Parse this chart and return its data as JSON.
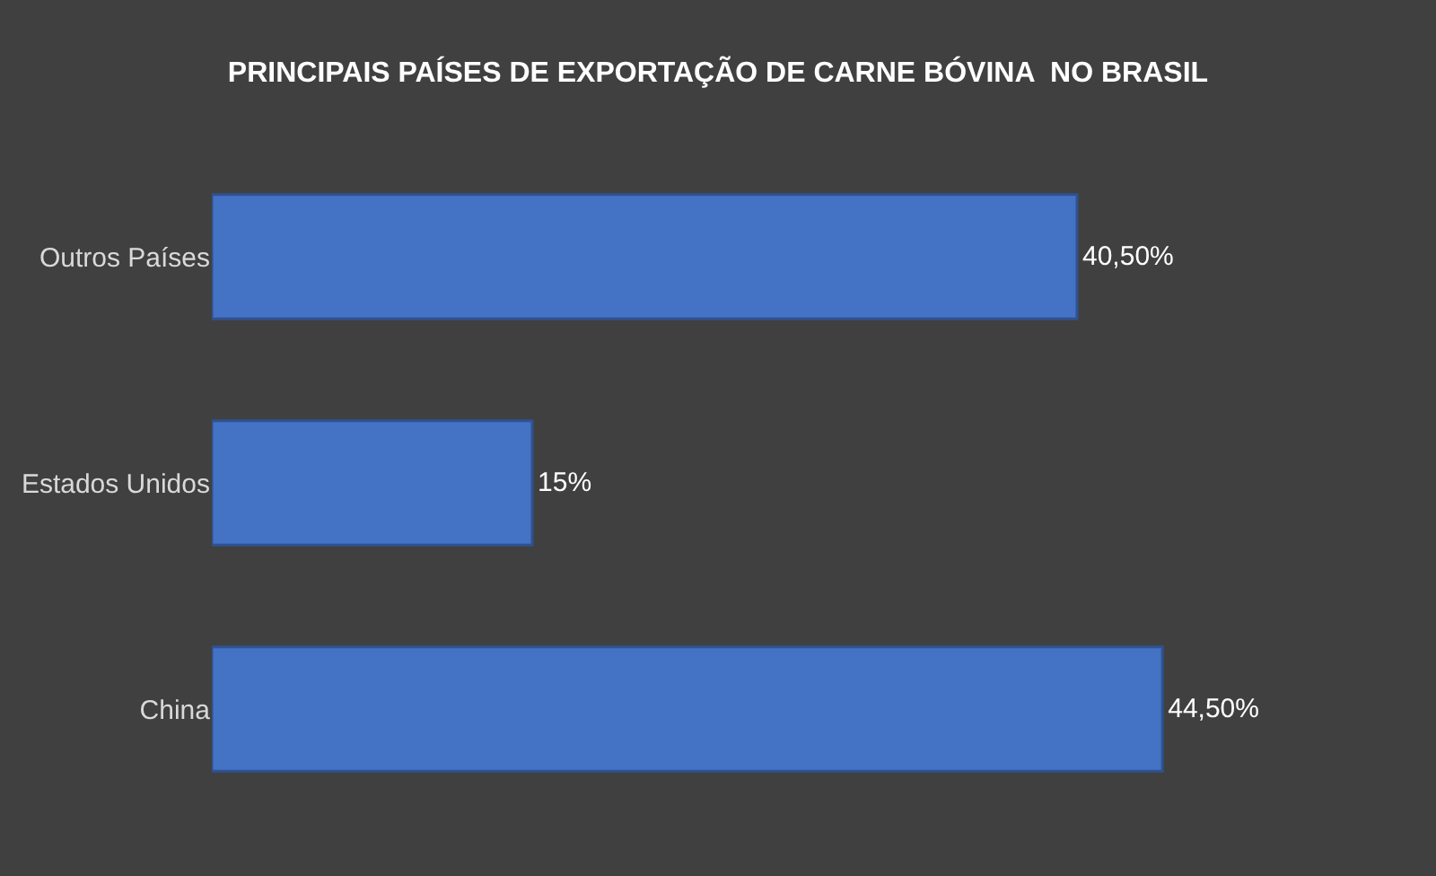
{
  "chart_data": {
    "type": "bar",
    "orientation": "horizontal",
    "title": "PRINCIPAIS PAÍSES DE EXPORTAÇÃO DE CARNE BÓVINA  NO BRASIL",
    "categories": [
      "Outros Países",
      "Estados Unidos",
      "China"
    ],
    "values": [
      40.5,
      15,
      44.5
    ],
    "value_labels": [
      "40,50%",
      "15%",
      "44,50%"
    ],
    "color": "#4472c4",
    "grid": false,
    "legend": false,
    "tick_labels": "y"
  }
}
